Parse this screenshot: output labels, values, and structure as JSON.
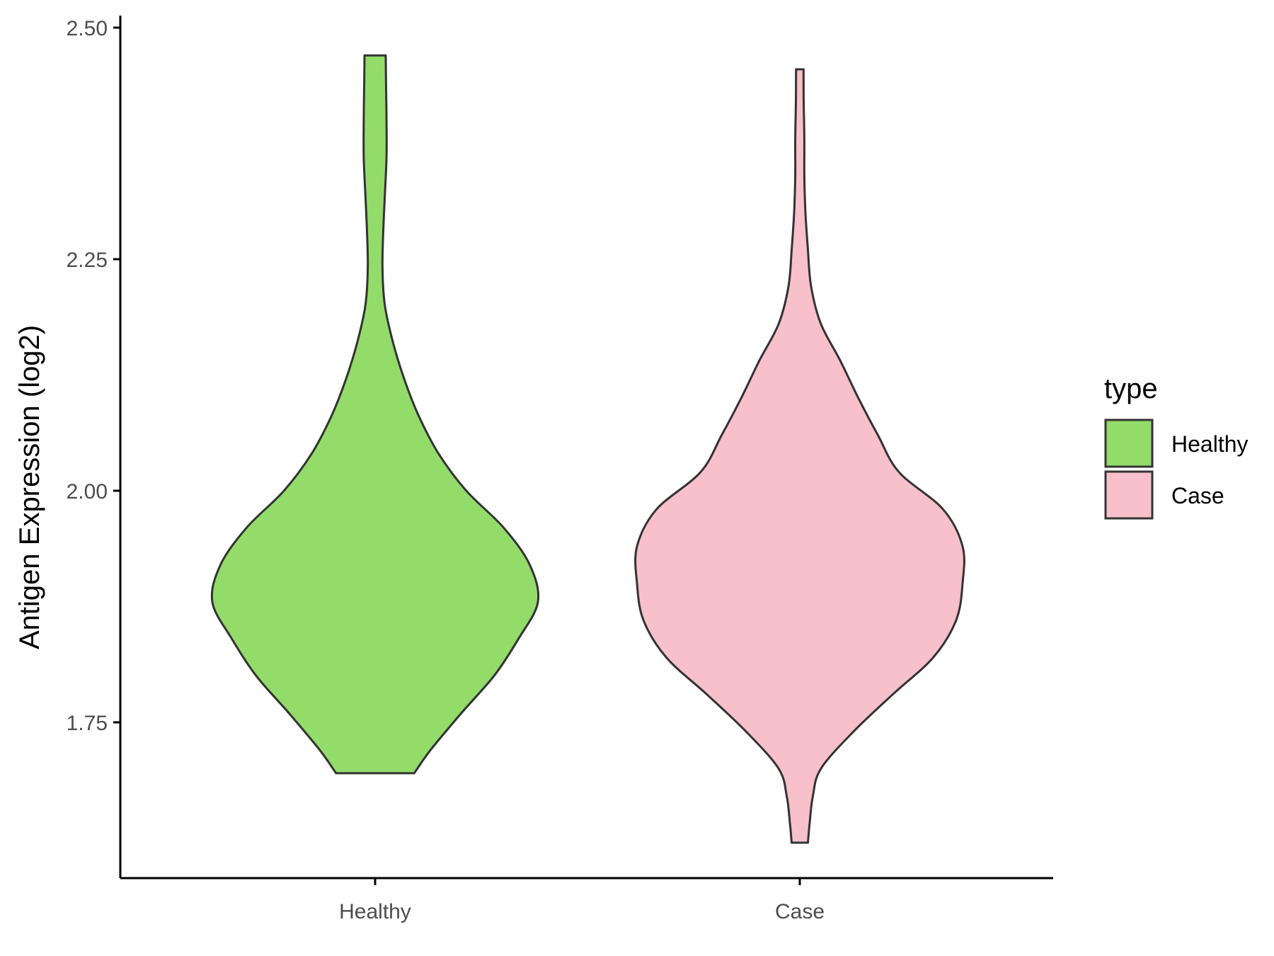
{
  "chart_data": {
    "type": "violin",
    "xlabel": "",
    "ylabel": "Antigen Expression (log2)",
    "ylim": [
      1.58,
      2.51
    ],
    "yticks": [
      "1.75",
      "2.00",
      "2.25",
      "2.50"
    ],
    "categories": [
      "Healthy",
      "Case"
    ],
    "legend": {
      "title": "type",
      "position": "right",
      "entries": [
        {
          "label": "Healthy",
          "color": "#93dc6a"
        },
        {
          "label": "Case",
          "color": "#f7c0cb"
        }
      ]
    },
    "grid": false,
    "series": [
      {
        "name": "Healthy",
        "color": "#93dc6a",
        "min": 1.695,
        "max": 2.47,
        "density": [
          [
            1.695,
            0.24
          ],
          [
            1.72,
            0.34
          ],
          [
            1.76,
            0.53
          ],
          [
            1.8,
            0.73
          ],
          [
            1.84,
            0.88
          ],
          [
            1.88,
            1.0
          ],
          [
            1.92,
            0.95
          ],
          [
            1.96,
            0.79
          ],
          [
            2.0,
            0.56
          ],
          [
            2.04,
            0.39
          ],
          [
            2.08,
            0.27
          ],
          [
            2.12,
            0.18
          ],
          [
            2.16,
            0.11
          ],
          [
            2.2,
            0.06
          ],
          [
            2.24,
            0.045
          ],
          [
            2.28,
            0.05
          ],
          [
            2.32,
            0.06
          ],
          [
            2.36,
            0.07
          ],
          [
            2.4,
            0.07
          ],
          [
            2.44,
            0.067
          ],
          [
            2.47,
            0.065
          ]
        ]
      },
      {
        "name": "Case",
        "color": "#f7c0cb",
        "min": 1.62,
        "max": 2.455,
        "density": [
          [
            1.62,
            0.05
          ],
          [
            1.64,
            0.06
          ],
          [
            1.67,
            0.08
          ],
          [
            1.7,
            0.13
          ],
          [
            1.74,
            0.33
          ],
          [
            1.78,
            0.57
          ],
          [
            1.82,
            0.82
          ],
          [
            1.86,
            0.96
          ],
          [
            1.9,
            1.0
          ],
          [
            1.94,
            1.0
          ],
          [
            1.98,
            0.88
          ],
          [
            2.02,
            0.61
          ],
          [
            2.06,
            0.48
          ],
          [
            2.1,
            0.36
          ],
          [
            2.14,
            0.25
          ],
          [
            2.18,
            0.13
          ],
          [
            2.22,
            0.07
          ],
          [
            2.26,
            0.05
          ],
          [
            2.3,
            0.035
          ],
          [
            2.34,
            0.028
          ],
          [
            2.38,
            0.028
          ],
          [
            2.42,
            0.024
          ],
          [
            2.455,
            0.023
          ]
        ]
      }
    ]
  }
}
